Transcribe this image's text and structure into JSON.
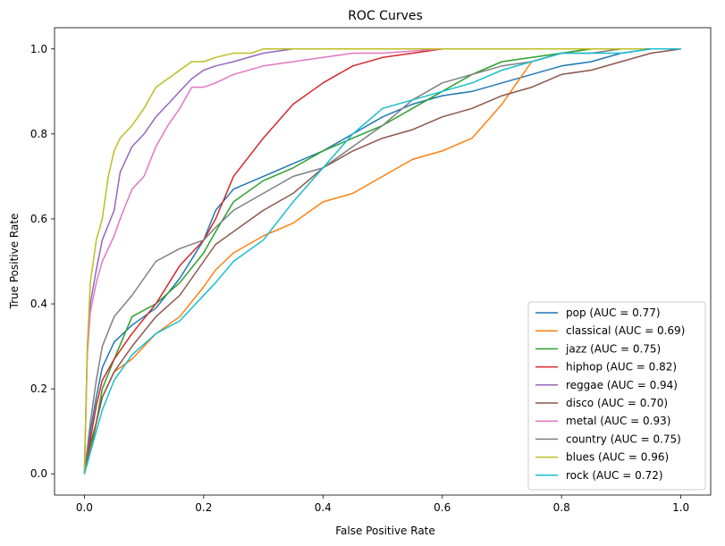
{
  "chart_data": {
    "type": "line",
    "title": "ROC Curves",
    "xlabel": "False Positive Rate",
    "ylabel": "True Positive Rate",
    "xlim": [
      -0.05,
      1.05
    ],
    "ylim": [
      -0.05,
      1.05
    ],
    "xticks": [
      "0.0",
      "0.2",
      "0.4",
      "0.6",
      "0.8",
      "1.0"
    ],
    "yticks": [
      "0.0",
      "0.2",
      "0.4",
      "0.6",
      "0.8",
      "1.0"
    ],
    "grid": false,
    "legend_position": "bottom-right",
    "series": [
      {
        "name": "pop (AUC = 0.77)",
        "color": "#1f77b4",
        "x": [
          0,
          0.01,
          0.02,
          0.03,
          0.05,
          0.08,
          0.12,
          0.16,
          0.2,
          0.22,
          0.25,
          0.3,
          0.35,
          0.4,
          0.45,
          0.5,
          0.55,
          0.6,
          0.65,
          0.7,
          0.75,
          0.8,
          0.85,
          0.9,
          0.95,
          1.0
        ],
        "y": [
          0,
          0.1,
          0.18,
          0.25,
          0.31,
          0.35,
          0.39,
          0.46,
          0.55,
          0.62,
          0.67,
          0.7,
          0.73,
          0.76,
          0.8,
          0.84,
          0.87,
          0.89,
          0.9,
          0.92,
          0.94,
          0.96,
          0.97,
          0.99,
          1.0,
          1.0
        ]
      },
      {
        "name": "classical (AUC = 0.69)",
        "color": "#ff7f0e",
        "x": [
          0,
          0.01,
          0.02,
          0.03,
          0.05,
          0.08,
          0.12,
          0.16,
          0.2,
          0.22,
          0.25,
          0.3,
          0.35,
          0.4,
          0.45,
          0.5,
          0.55,
          0.6,
          0.65,
          0.7,
          0.75,
          0.8,
          0.85,
          0.9,
          0.95,
          1.0
        ],
        "y": [
          0,
          0.06,
          0.12,
          0.18,
          0.24,
          0.27,
          0.33,
          0.37,
          0.44,
          0.48,
          0.52,
          0.56,
          0.59,
          0.64,
          0.66,
          0.7,
          0.74,
          0.76,
          0.79,
          0.87,
          0.97,
          0.99,
          1.0,
          1.0,
          1.0,
          1.0
        ]
      },
      {
        "name": "jazz (AUC = 0.75)",
        "color": "#2ca02c",
        "x": [
          0,
          0.01,
          0.02,
          0.03,
          0.05,
          0.08,
          0.12,
          0.16,
          0.2,
          0.22,
          0.25,
          0.3,
          0.35,
          0.4,
          0.45,
          0.5,
          0.55,
          0.6,
          0.65,
          0.7,
          0.75,
          0.8,
          0.85,
          0.9,
          0.95,
          1.0
        ],
        "y": [
          0,
          0.05,
          0.12,
          0.2,
          0.27,
          0.37,
          0.4,
          0.45,
          0.52,
          0.57,
          0.64,
          0.69,
          0.72,
          0.76,
          0.79,
          0.82,
          0.86,
          0.9,
          0.94,
          0.97,
          0.98,
          0.99,
          1.0,
          1.0,
          1.0,
          1.0
        ]
      },
      {
        "name": "hiphop (AUC = 0.82)",
        "color": "#d62728",
        "x": [
          0,
          0.01,
          0.02,
          0.03,
          0.05,
          0.08,
          0.12,
          0.16,
          0.2,
          0.22,
          0.25,
          0.3,
          0.35,
          0.4,
          0.45,
          0.5,
          0.55,
          0.6,
          0.65,
          0.7,
          0.75,
          0.8,
          0.85,
          0.9,
          0.95,
          1.0
        ],
        "y": [
          0,
          0.08,
          0.16,
          0.22,
          0.27,
          0.33,
          0.4,
          0.49,
          0.55,
          0.6,
          0.7,
          0.79,
          0.87,
          0.92,
          0.96,
          0.98,
          0.99,
          1.0,
          1.0,
          1.0,
          1.0,
          1.0,
          1.0,
          1.0,
          1.0,
          1.0
        ]
      },
      {
        "name": "reggae (AUC = 0.94)",
        "color": "#9467bd",
        "x": [
          0,
          0.005,
          0.01,
          0.02,
          0.03,
          0.05,
          0.06,
          0.08,
          0.1,
          0.12,
          0.14,
          0.16,
          0.18,
          0.2,
          0.22,
          0.25,
          0.3,
          0.35,
          0.4,
          0.45,
          0.5,
          0.6,
          0.7,
          0.8,
          0.9,
          1.0
        ],
        "y": [
          0,
          0.3,
          0.4,
          0.48,
          0.55,
          0.62,
          0.71,
          0.77,
          0.8,
          0.84,
          0.87,
          0.9,
          0.93,
          0.95,
          0.96,
          0.97,
          0.99,
          1.0,
          1.0,
          1.0,
          1.0,
          1.0,
          1.0,
          1.0,
          1.0,
          1.0
        ]
      },
      {
        "name": "disco (AUC = 0.70)",
        "color": "#8c564b",
        "x": [
          0,
          0.01,
          0.02,
          0.03,
          0.05,
          0.08,
          0.12,
          0.16,
          0.2,
          0.22,
          0.25,
          0.3,
          0.35,
          0.4,
          0.45,
          0.5,
          0.55,
          0.6,
          0.65,
          0.7,
          0.75,
          0.8,
          0.85,
          0.9,
          0.95,
          1.0
        ],
        "y": [
          0,
          0.07,
          0.12,
          0.18,
          0.24,
          0.3,
          0.37,
          0.42,
          0.5,
          0.54,
          0.57,
          0.62,
          0.66,
          0.72,
          0.76,
          0.79,
          0.81,
          0.84,
          0.86,
          0.89,
          0.91,
          0.94,
          0.95,
          0.97,
          0.99,
          1.0
        ]
      },
      {
        "name": "metal (AUC = 0.93)",
        "color": "#e377c2",
        "x": [
          0,
          0.005,
          0.01,
          0.02,
          0.03,
          0.05,
          0.06,
          0.08,
          0.1,
          0.12,
          0.14,
          0.16,
          0.18,
          0.2,
          0.22,
          0.25,
          0.3,
          0.35,
          0.4,
          0.45,
          0.5,
          0.6,
          0.7,
          0.8,
          0.9,
          1.0
        ],
        "y": [
          0,
          0.28,
          0.38,
          0.45,
          0.5,
          0.56,
          0.6,
          0.67,
          0.7,
          0.77,
          0.82,
          0.86,
          0.91,
          0.91,
          0.92,
          0.94,
          0.96,
          0.97,
          0.98,
          0.99,
          0.99,
          1.0,
          1.0,
          1.0,
          1.0,
          1.0
        ]
      },
      {
        "name": "country (AUC = 0.75)",
        "color": "#7f7f7f",
        "x": [
          0,
          0.01,
          0.02,
          0.03,
          0.05,
          0.08,
          0.12,
          0.16,
          0.2,
          0.22,
          0.25,
          0.3,
          0.35,
          0.4,
          0.45,
          0.5,
          0.55,
          0.6,
          0.65,
          0.7,
          0.75,
          0.8,
          0.85,
          0.9,
          0.95,
          1.0
        ],
        "y": [
          0,
          0.12,
          0.22,
          0.3,
          0.37,
          0.42,
          0.5,
          0.53,
          0.55,
          0.58,
          0.62,
          0.66,
          0.7,
          0.72,
          0.77,
          0.82,
          0.88,
          0.92,
          0.94,
          0.96,
          0.97,
          0.99,
          0.99,
          1.0,
          1.0,
          1.0
        ]
      },
      {
        "name": "blues (AUC = 0.96)",
        "color": "#bcbd22",
        "x": [
          0,
          0.005,
          0.01,
          0.015,
          0.02,
          0.03,
          0.04,
          0.05,
          0.06,
          0.08,
          0.1,
          0.12,
          0.14,
          0.16,
          0.18,
          0.2,
          0.22,
          0.25,
          0.28,
          0.3,
          0.4,
          0.5,
          0.6,
          0.7,
          0.8,
          0.94
        ],
        "y": [
          0,
          0.3,
          0.45,
          0.5,
          0.55,
          0.6,
          0.7,
          0.76,
          0.79,
          0.82,
          0.86,
          0.91,
          0.93,
          0.95,
          0.97,
          0.97,
          0.98,
          0.99,
          0.99,
          1.0,
          1.0,
          1.0,
          1.0,
          1.0,
          1.0,
          1.0
        ]
      },
      {
        "name": "rock (AUC = 0.72)",
        "color": "#17becf",
        "x": [
          0,
          0.01,
          0.02,
          0.03,
          0.05,
          0.08,
          0.12,
          0.16,
          0.2,
          0.22,
          0.25,
          0.3,
          0.35,
          0.4,
          0.45,
          0.5,
          0.55,
          0.6,
          0.65,
          0.7,
          0.75,
          0.8,
          0.85,
          0.9,
          0.95,
          1.0
        ],
        "y": [
          0,
          0.05,
          0.1,
          0.15,
          0.22,
          0.28,
          0.33,
          0.36,
          0.42,
          0.45,
          0.5,
          0.55,
          0.64,
          0.72,
          0.8,
          0.86,
          0.88,
          0.9,
          0.92,
          0.95,
          0.97,
          0.99,
          0.99,
          0.99,
          1.0,
          1.0
        ]
      }
    ]
  }
}
